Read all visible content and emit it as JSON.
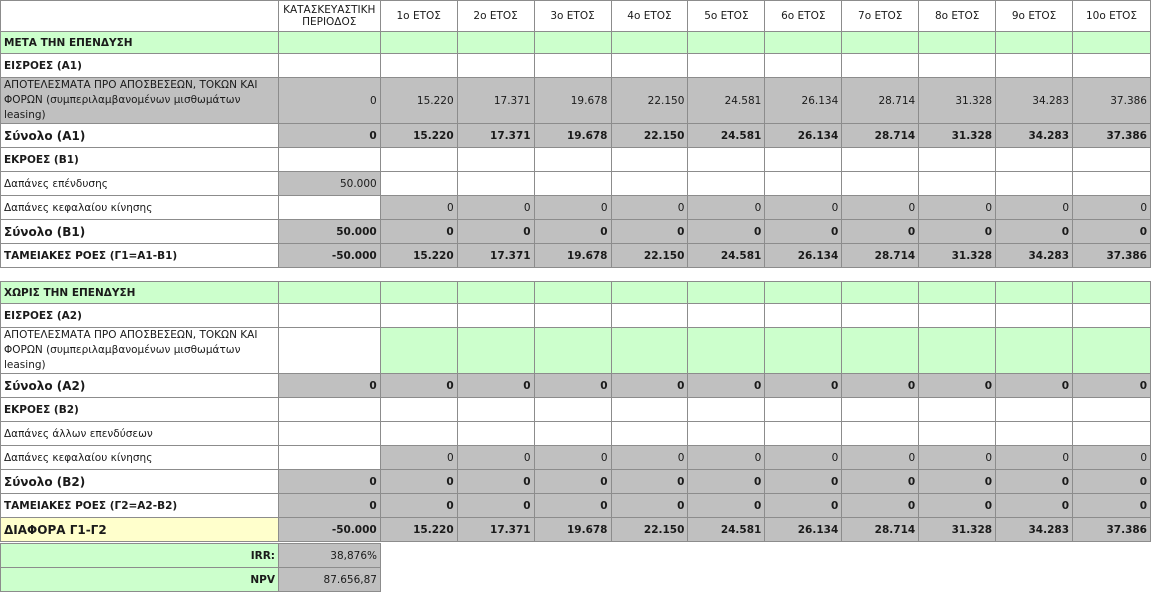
{
  "columns": {
    "construction": "ΚΑΤΑΣΚΕΥΑΣΤΙΚΗ ΠΕΡΙΟΔΟΣ",
    "years": [
      "1ο ΕΤΟΣ",
      "2ο ΕΤΟΣ",
      "3ο ΕΤΟΣ",
      "4ο ΕΤΟΣ",
      "5ο ΕΤΟΣ",
      "6ο ΕΤΟΣ",
      "7ο ΕΤΟΣ",
      "8ο ΕΤΟΣ",
      "9ο ΕΤΟΣ",
      "10ο ΕΤΟΣ"
    ]
  },
  "with_investment": {
    "title": "ΜΕΤΑ ΤΗΝ ΕΠΕΝΔΥΣΗ",
    "inflows_title": "ΕΙΣΡΟΕΣ (Α1)",
    "ebitda_label": "ΑΠΟΤΕΛΕΣΜΑΤΑ ΠΡΟ ΑΠΟΣΒΕΣΕΩΝ, ΤΟΚΩΝ ΚΑΙ ΦΟΡΩΝ (συμπεριλαμβανομένων μισθωμάτων leasing)",
    "ebitda": [
      "0",
      "15.220",
      "17.371",
      "19.678",
      "22.150",
      "24.581",
      "26.134",
      "28.714",
      "31.328",
      "34.283",
      "37.386"
    ],
    "total_a1_label": "Σύνολο (Α1)",
    "total_a1": [
      "0",
      "15.220",
      "17.371",
      "19.678",
      "22.150",
      "24.581",
      "26.134",
      "28.714",
      "31.328",
      "34.283",
      "37.386"
    ],
    "outflows_title": "ΕΚΡΟΕΣ (Β1)",
    "invest_cost_label": "Δαπάνες επένδυσης",
    "invest_cost": "50.000",
    "working_capital_label": "Δαπάνες κεφαλαίου κίνησης",
    "working_capital": [
      "0",
      "0",
      "0",
      "0",
      "0",
      "0",
      "0",
      "0",
      "0",
      "0"
    ],
    "total_b1_label": "Σύνολο (Β1)",
    "total_b1": [
      "50.000",
      "0",
      "0",
      "0",
      "0",
      "0",
      "0",
      "0",
      "0",
      "0",
      "0"
    ],
    "cash_flow_label": "ΤΑΜΕΙΑΚΕΣ ΡΟΕΣ (Γ1=Α1-Β1)",
    "cash_flow": [
      "-50.000",
      "15.220",
      "17.371",
      "19.678",
      "22.150",
      "24.581",
      "26.134",
      "28.714",
      "31.328",
      "34.283",
      "37.386"
    ]
  },
  "without_investment": {
    "title": "ΧΩΡΙΣ ΤΗΝ ΕΠΕΝΔΥΣΗ",
    "inflows_title": "ΕΙΣΡΟΕΣ (Α2)",
    "ebitda_label": "ΑΠΟΤΕΛΕΣΜΑΤΑ ΠΡΟ ΑΠΟΣΒΕΣΕΩΝ, ΤΟΚΩΝ ΚΑΙ ΦΟΡΩΝ (συμπεριλαμβανομένων μισθωμάτων leasing)",
    "total_a2_label": "Σύνολο (Α2)",
    "total_a2": [
      "0",
      "0",
      "0",
      "0",
      "0",
      "0",
      "0",
      "0",
      "0",
      "0",
      "0"
    ],
    "outflows_title": "ΕΚΡΟΕΣ (Β2)",
    "other_invest_label": "Δαπάνες άλλων επενδύσεων",
    "working_capital_label": "Δαπάνες κεφαλαίου κίνησης",
    "working_capital": [
      "0",
      "0",
      "0",
      "0",
      "0",
      "0",
      "0",
      "0",
      "0",
      "0"
    ],
    "total_b2_label": "Σύνολο (Β2)",
    "total_b2": [
      "0",
      "0",
      "0",
      "0",
      "0",
      "0",
      "0",
      "0",
      "0",
      "0",
      "0"
    ],
    "cash_flow_label": "ΤΑΜΕΙΑΚΕΣ ΡΟΕΣ (Γ2=Α2-Β2)",
    "cash_flow": [
      "0",
      "0",
      "0",
      "0",
      "0",
      "0",
      "0",
      "0",
      "0",
      "0",
      "0"
    ]
  },
  "difference": {
    "label": "ΔΙΑΦΟΡΑ Γ1-Γ2",
    "values": [
      "-50.000",
      "15.220",
      "17.371",
      "19.678",
      "22.150",
      "24.581",
      "26.134",
      "28.714",
      "31.328",
      "34.283",
      "37.386"
    ]
  },
  "summary": {
    "irr_label": "IRR:",
    "irr_value": "38,876%",
    "npv_label": "NPV",
    "npv_value": "87.656,87"
  }
}
